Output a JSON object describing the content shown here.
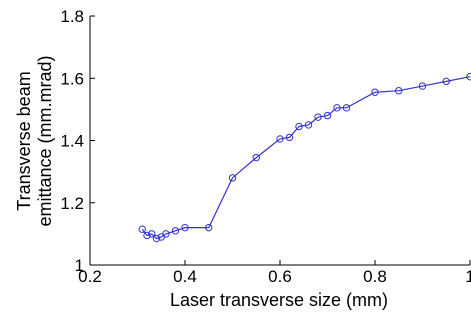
{
  "chart_data": {
    "type": "line",
    "xlabel": "Laser transverse size (mm)",
    "ylabel_lines": [
      "Transverse beam",
      "emittance (mm.mrad)"
    ],
    "xlim": [
      0.2,
      1.0
    ],
    "ylim": [
      1.0,
      1.8
    ],
    "xticks": [
      0.2,
      0.4,
      0.6,
      0.8,
      1.0
    ],
    "xtick_labels": [
      "0.2",
      "0.4",
      "0.6",
      "0.8",
      "1"
    ],
    "yticks": [
      1.0,
      1.2,
      1.4,
      1.6,
      1.8
    ],
    "ytick_labels": [
      "1",
      "1.2",
      "1.4",
      "1.6",
      "1.8"
    ],
    "grid": false,
    "marker": "circle",
    "color": "#3333cc",
    "series": [
      {
        "x": [
          0.31,
          0.32,
          0.33,
          0.34,
          0.35,
          0.36,
          0.38,
          0.4,
          0.45,
          0.5,
          0.55,
          0.6,
          0.62,
          0.64,
          0.66,
          0.68,
          0.7,
          0.72,
          0.74,
          0.8,
          0.85,
          0.9,
          0.95,
          1.0
        ],
        "y": [
          1.115,
          1.095,
          1.1,
          1.085,
          1.09,
          1.1,
          1.11,
          1.12,
          1.12,
          1.28,
          1.345,
          1.405,
          1.41,
          1.445,
          1.45,
          1.475,
          1.48,
          1.505,
          1.505,
          1.555,
          1.56,
          1.575,
          1.59,
          1.605
        ]
      }
    ]
  }
}
